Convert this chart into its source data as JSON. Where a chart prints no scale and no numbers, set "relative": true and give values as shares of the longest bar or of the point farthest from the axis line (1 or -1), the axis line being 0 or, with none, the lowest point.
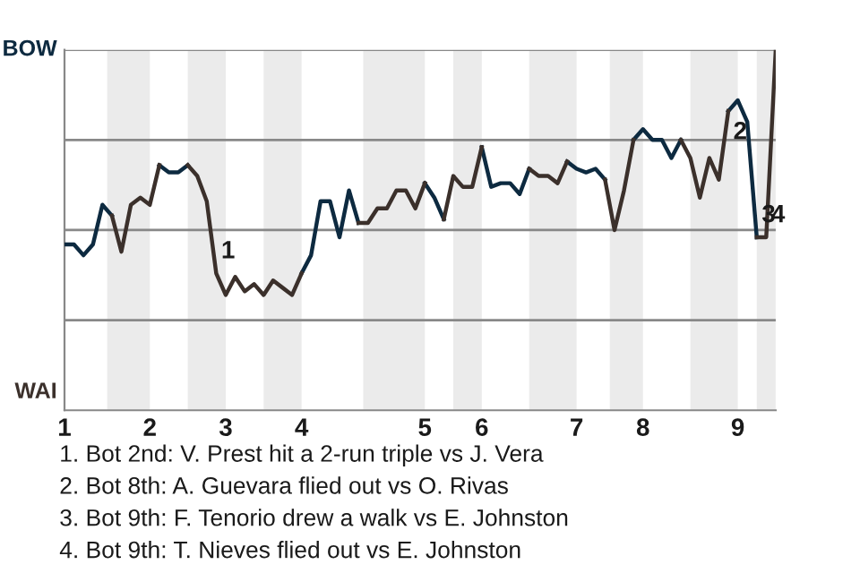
{
  "chart_data": {
    "type": "line",
    "relative": true,
    "categories": [
      "1",
      null,
      null,
      null,
      null,
      null,
      null,
      null,
      null,
      "2",
      null,
      null,
      null,
      null,
      null,
      null,
      null,
      "3",
      null,
      null,
      null,
      null,
      null,
      null,
      null,
      "4",
      null,
      null,
      null,
      null,
      null,
      null,
      null,
      null,
      null,
      null,
      null,
      null,
      "5",
      null,
      null,
      null,
      null,
      null,
      "6",
      null,
      null,
      null,
      null,
      null,
      null,
      null,
      null,
      null,
      "7",
      null,
      null,
      null,
      null,
      null,
      null,
      "8",
      null,
      null,
      null,
      null,
      null,
      null,
      null,
      null,
      null,
      "9",
      null,
      null,
      null,
      null
    ],
    "series": [
      {
        "color": "#0d2a40",
        "values": [
          0.46,
          0.46,
          0.43,
          0.46,
          0.57,
          0.54,
          null,
          null,
          null,
          null,
          0.68,
          0.66,
          0.66,
          0.68,
          null,
          null,
          null,
          null,
          null,
          null,
          null,
          null,
          null,
          null,
          null,
          0.38,
          0.43,
          0.58,
          0.58,
          0.48,
          0.61,
          0.52,
          null,
          null,
          null,
          null,
          null,
          null,
          0.63,
          0.59,
          0.53,
          null,
          null,
          null,
          0.73,
          0.62,
          0.63,
          0.63,
          0.6,
          0.67,
          null,
          null,
          null,
          0.69,
          0.67,
          0.66,
          0.67,
          0.64,
          null,
          null,
          0.75,
          0.78,
          0.75,
          0.75,
          0.7,
          0.75,
          null,
          null,
          null,
          null,
          0.83,
          0.86,
          0.8,
          0.48,
          null,
          null
        ]
      },
      {
        "color": "#3b302b",
        "values": [
          null,
          null,
          null,
          null,
          null,
          0.54,
          0.44,
          0.57,
          0.59,
          0.57,
          0.68,
          null,
          null,
          0.68,
          0.65,
          0.58,
          0.38,
          0.32,
          0.37,
          0.33,
          0.35,
          0.32,
          0.36,
          0.34,
          0.32,
          0.38,
          null,
          null,
          null,
          null,
          null,
          0.52,
          0.52,
          0.56,
          0.56,
          0.61,
          0.61,
          0.56,
          0.63,
          null,
          0.53,
          0.65,
          0.62,
          0.62,
          0.73,
          null,
          null,
          null,
          null,
          0.67,
          0.65,
          0.65,
          0.63,
          0.69,
          null,
          null,
          null,
          0.64,
          0.5,
          0.61,
          0.75,
          null,
          null,
          null,
          null,
          0.75,
          0.7,
          0.59,
          0.7,
          0.64,
          0.83,
          null,
          null,
          0.48,
          0.48,
          1
        ]
      }
    ],
    "ref_lines": [
      {
        "axis": "y",
        "value": 0.25,
        "color": "#888888"
      },
      {
        "axis": "y",
        "value": 0.5,
        "color": "#888888"
      },
      {
        "axis": "y",
        "value": 0.75,
        "color": "#888888"
      },
      {
        "axis": "y",
        "value": 1,
        "color": "#888888"
      }
    ],
    "annotations": [
      "BOW",
      "WAI",
      {
        "text": "1",
        "y": 0.38
      },
      {
        "text": "2",
        "y": 0.83
      },
      {
        "text": "3",
        "y": 0.48
      },
      {
        "text": "4",
        "y": 0.48
      },
      "1. Bot 2nd: V. Prest hit a 2-run triple vs J. Vera",
      "2. Bot 8th: A. Guevara flied out vs O. Rivas",
      "3. Bot 9th: F. Tenorio drew a walk vs E. Johnston",
      "4. Bot 9th: T. Nieves flied out vs E. Johnston"
    ]
  }
}
